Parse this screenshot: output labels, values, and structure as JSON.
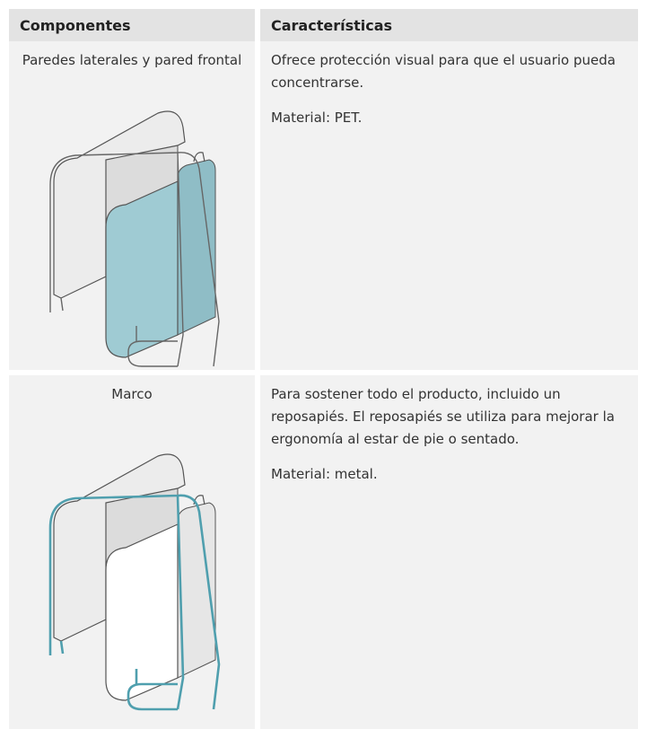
{
  "table": {
    "header": [
      "Componentes",
      "Características"
    ],
    "rows": [
      {
        "component": "Paredes laterales y pared frontal",
        "description": [
          "Ofrece protección visual para que el usuario pueda concentrarse.",
          "Material: PET."
        ]
      },
      {
        "component": "Marco",
        "description": [
          "Para sostener todo el producto, incluido un reposapiés. El reposapiés se utiliza para mejorar la ergonomía al estar de pie o sentado.",
          "Material: metal."
        ]
      }
    ]
  }
}
